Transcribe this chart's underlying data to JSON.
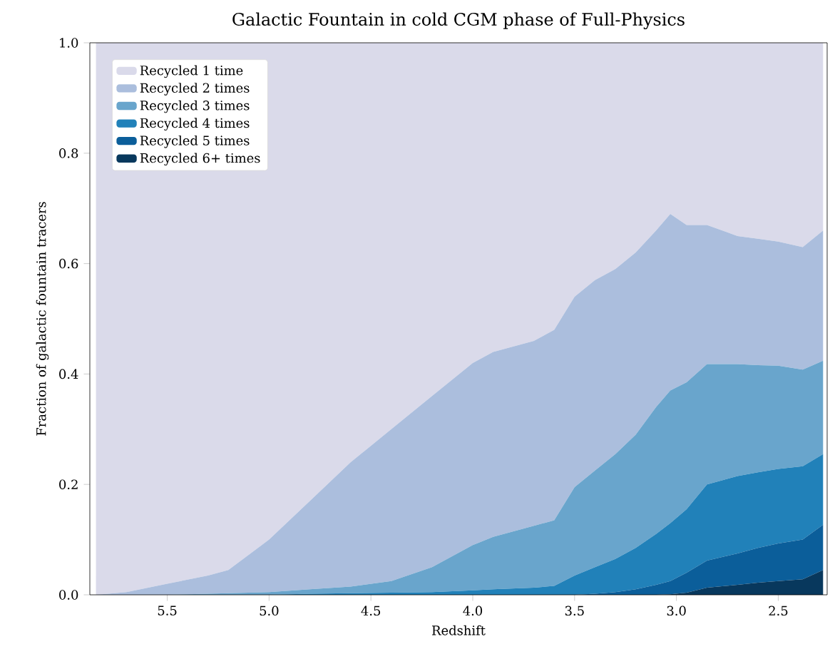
{
  "chart_data": {
    "type": "area",
    "stacked": true,
    "title": "Galactic Fountain in cold CGM phase of Full-Physics",
    "xlabel": "Redshift",
    "ylabel": "Fraction of galactic fountain tracers",
    "x": [
      5.85,
      5.7,
      5.5,
      5.3,
      5.2,
      5.0,
      4.8,
      4.6,
      4.4,
      4.2,
      4.0,
      3.9,
      3.7,
      3.6,
      3.5,
      3.4,
      3.3,
      3.2,
      3.1,
      3.03,
      2.95,
      2.85,
      2.7,
      2.6,
      2.5,
      2.38,
      2.28
    ],
    "series": [
      {
        "name": "Recycled 6+ times",
        "color": "#08385d",
        "values": [
          0,
          0,
          0,
          0,
          0,
          0,
          0,
          0,
          0,
          0,
          0,
          0,
          0,
          0,
          0,
          0,
          0,
          0,
          0,
          0.001,
          0.004,
          0.013,
          0.018,
          0.022,
          0.025,
          0.028,
          0.045
        ]
      },
      {
        "name": "Recycled 5 times",
        "color": "#0b5e9a",
        "values": [
          0,
          0,
          0,
          0,
          0,
          0,
          0,
          0,
          0,
          0,
          0,
          0,
          0,
          0,
          0,
          0.002,
          0.005,
          0.01,
          0.018,
          0.024,
          0.036,
          0.049,
          0.057,
          0.063,
          0.068,
          0.072,
          0.082
        ]
      },
      {
        "name": "Recycled 4 times",
        "color": "#2181b9",
        "values": [
          0,
          0,
          0,
          0,
          0,
          0,
          0.002,
          0.003,
          0.004,
          0.005,
          0.008,
          0.01,
          0.013,
          0.016,
          0.035,
          0.048,
          0.06,
          0.075,
          0.092,
          0.105,
          0.115,
          0.138,
          0.14,
          0.137,
          0.135,
          0.133,
          0.128
        ]
      },
      {
        "name": "Recycled 3 times",
        "color": "#69a5cc",
        "values": [
          0,
          0,
          0,
          0.002,
          0.003,
          0.005,
          0.008,
          0.012,
          0.021,
          0.045,
          0.082,
          0.095,
          0.112,
          0.119,
          0.16,
          0.175,
          0.19,
          0.205,
          0.23,
          0.24,
          0.23,
          0.218,
          0.203,
          0.194,
          0.187,
          0.175,
          0.169
        ]
      },
      {
        "name": "Recycled 2 times",
        "color": "#abbedd",
        "values": [
          0,
          0.005,
          0.02,
          0.033,
          0.042,
          0.095,
          0.16,
          0.225,
          0.275,
          0.31,
          0.33,
          0.335,
          0.335,
          0.345,
          0.345,
          0.345,
          0.335,
          0.33,
          0.32,
          0.32,
          0.285,
          0.252,
          0.232,
          0.229,
          0.225,
          0.222,
          0.236
        ]
      },
      {
        "name": "Recycled 1 time",
        "color": "#dadaea",
        "values": [
          1,
          0.995,
          0.98,
          0.965,
          0.955,
          0.9,
          0.83,
          0.76,
          0.7,
          0.64,
          0.58,
          0.56,
          0.54,
          0.52,
          0.46,
          0.43,
          0.41,
          0.38,
          0.34,
          0.31,
          0.33,
          0.33,
          0.35,
          0.355,
          0.36,
          0.37,
          0.34
        ]
      }
    ],
    "xlim": [
      5.88,
      2.26
    ],
    "xticks": [
      {
        "value": 5.5,
        "label": "5.5"
      },
      {
        "value": 5.0,
        "label": "5.0"
      },
      {
        "value": 4.5,
        "label": "4.5"
      },
      {
        "value": 4.0,
        "label": "4.0"
      },
      {
        "value": 3.5,
        "label": "3.5"
      },
      {
        "value": 3.0,
        "label": "3.0"
      },
      {
        "value": 2.5,
        "label": "2.5"
      }
    ],
    "ylim": [
      0,
      1
    ],
    "yticks": [
      {
        "value": 0,
        "label": "0.0"
      },
      {
        "value": 0.2,
        "label": "0.2"
      },
      {
        "value": 0.4,
        "label": "0.4"
      },
      {
        "value": 0.6,
        "label": "0.6"
      },
      {
        "value": 0.8,
        "label": "0.8"
      },
      {
        "value": 1,
        "label": "1.0"
      }
    ],
    "legend": "top left"
  }
}
